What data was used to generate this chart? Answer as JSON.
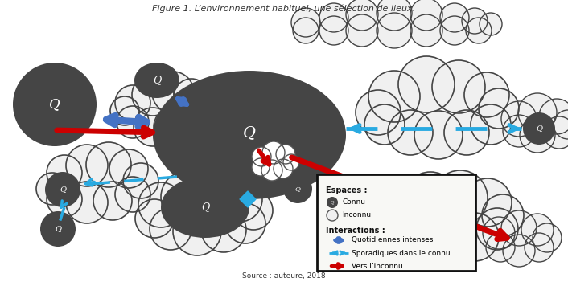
{
  "title": "Figure 1. L’environnement habituel, une sélection de lieux.",
  "source": "Source : auteure, 2018",
  "background_color": "#ffffff",
  "title_fontsize": 8,
  "legend": {
    "espaces_label": "Espaces :",
    "connu_label": "Connu",
    "inconnu_label": "Inconnu",
    "interactions_label": "Interactions :",
    "q1_label": "Quotidiennes intenses",
    "q2_label": "Sporadiques dans le connu",
    "q3_label": "Vers l’inconnu"
  },
  "dark_color": "#454545",
  "cloud_fill": "#e8e8e8",
  "cloud_fill_white": "#f0f0f0",
  "cloud_edge": "#333333",
  "arrow_blue_solid": "#4472c4",
  "arrow_blue_dashed": "#29aae1",
  "arrow_red": "#cc0000"
}
